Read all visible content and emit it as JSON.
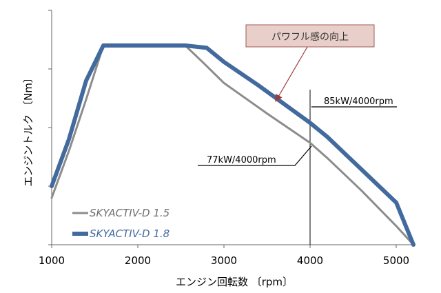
{
  "chart_data": {
    "type": "line",
    "title": "",
    "xlabel": "エンジン回転数 〔rpm〕",
    "ylabel": "エンジントルク 〔Nm〕",
    "xlim": [
      1000,
      5200
    ],
    "ylim": [
      0,
      100
    ],
    "xticks": [
      "1000",
      "2000",
      "3000",
      "4000",
      "5000"
    ],
    "xtick_values": [
      1000,
      2000,
      3000,
      4000,
      5000
    ],
    "ytick_count": 5,
    "grid": false,
    "legend_position": "bottom-left",
    "series": [
      {
        "name": "SKYACTIV-D 1.5",
        "color": "#8c8c8c",
        "points": [
          [
            1000,
            20
          ],
          [
            1200,
            40
          ],
          [
            1400,
            62
          ],
          [
            1600,
            85
          ],
          [
            1900,
            85
          ],
          [
            2200,
            85
          ],
          [
            2550,
            85
          ],
          [
            2750,
            78
          ],
          [
            3000,
            69
          ],
          [
            3500,
            56
          ],
          [
            4000,
            43.5
          ],
          [
            4200,
            37
          ],
          [
            4600,
            23
          ],
          [
            5000,
            8
          ],
          [
            5200,
            0
          ]
        ]
      },
      {
        "name": "SKYACTIV-D 1.8",
        "color": "#436a9e",
        "points": [
          [
            1000,
            25
          ],
          [
            1200,
            45
          ],
          [
            1400,
            70
          ],
          [
            1600,
            85
          ],
          [
            1900,
            85
          ],
          [
            2200,
            85
          ],
          [
            2550,
            85
          ],
          [
            2800,
            84
          ],
          [
            3000,
            78
          ],
          [
            3400,
            68
          ],
          [
            4000,
            52
          ],
          [
            4200,
            46
          ],
          [
            4600,
            32
          ],
          [
            5000,
            18
          ],
          [
            5200,
            0
          ]
        ]
      }
    ],
    "annotations": {
      "callout": "パワフル感の向上",
      "label_18": "85kW/4000rpm",
      "label_15": "77kW/4000rpm",
      "marker_x": 4000
    }
  }
}
